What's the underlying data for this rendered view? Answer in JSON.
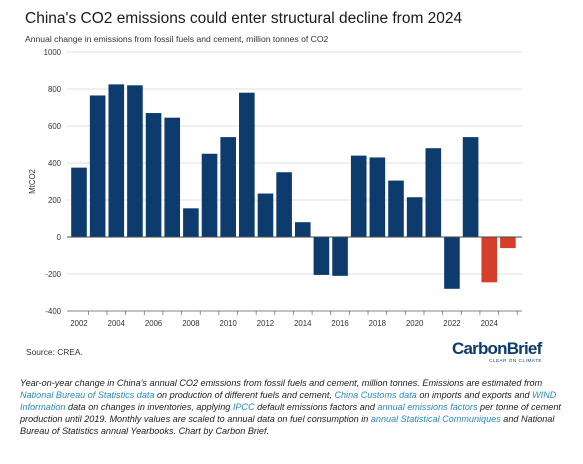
{
  "title": "China's CO2 emissions could enter structural decline from 2024",
  "subtitle": "Annual change in emissions from fossil fuels and cement, million tonnes of CO2",
  "source": "Source: CREA.",
  "logo": {
    "name": "CarbonBrief",
    "tagline": "CLEAR ON CLIMATE"
  },
  "colors": {
    "historic": "#0d3b6e",
    "projection": "#d6402a",
    "grid": "#d9d9d9"
  },
  "chart_data": {
    "type": "bar",
    "title": "China's CO2 emissions could enter structural decline from 2024",
    "subtitle": "Annual change in emissions from fossil fuels and cement, million tonnes of CO2",
    "xlabel": "",
    "ylabel": "MtCO2",
    "ylim": [
      -400,
      1000
    ],
    "yticks": [
      -400,
      -200,
      0,
      200,
      400,
      600,
      800,
      1000
    ],
    "xtick_labels": [
      "2002",
      "2004",
      "2006",
      "2008",
      "2010",
      "2012",
      "2014",
      "2016",
      "2018",
      "2020",
      "2022",
      "2024"
    ],
    "grid": true,
    "series": [
      {
        "color": "#0d3b6e",
        "x": [
          2002,
          2003,
          2004,
          2005,
          2006,
          2007,
          2008,
          2009,
          2010,
          2011,
          2012,
          2013,
          2014,
          2015,
          2016,
          2017,
          2018,
          2019,
          2020,
          2021,
          2022,
          2023
        ],
        "values": [
          375,
          765,
          825,
          820,
          670,
          645,
          155,
          450,
          540,
          780,
          235,
          350,
          80,
          -205,
          -210,
          440,
          430,
          305,
          215,
          480,
          -280,
          540
        ]
      },
      {
        "color": "#d6402a",
        "x": [
          2024,
          2025
        ],
        "values": [
          -245,
          -60
        ]
      }
    ]
  },
  "caption": [
    {
      "text": "Year-on-year change in China's annual CO2 emissions from fossil fuels and cement, million tonnes. Emissions are estimated from "
    },
    {
      "text": "National Bureau of Statistics data",
      "link": true
    },
    {
      "text": " on production of different fuels and cement, "
    },
    {
      "text": "China Customs data",
      "link": true
    },
    {
      "text": " on imports and exports and "
    },
    {
      "text": "WIND Information",
      "link": true
    },
    {
      "text": " data on changes in inventories, applying "
    },
    {
      "text": "IPCC",
      "link": true
    },
    {
      "text": " default emissions factors and "
    },
    {
      "text": "annual emissions factors",
      "link": true
    },
    {
      "text": " per tonne of cement production until 2019. Monthly values are scaled to annual data on fuel consumption in "
    },
    {
      "text": "annual Statistical Communiques",
      "link": true
    },
    {
      "text": " and National Bureau of Statistics annual Yearbooks. Chart by Carbon Brief."
    }
  ]
}
